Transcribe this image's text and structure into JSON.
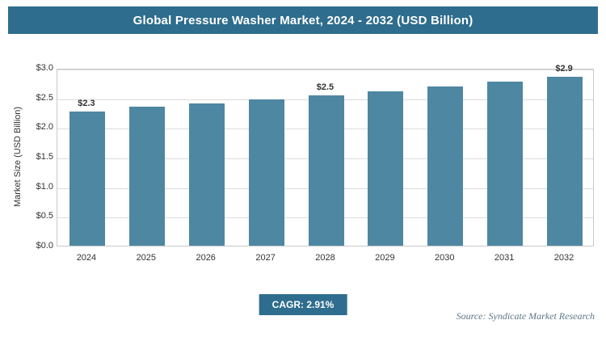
{
  "header": {
    "title": "Global Pressure Washer Market, 2024 - 2032 (USD Billion)"
  },
  "chart_data": {
    "type": "bar",
    "title": "Global Pressure Washer Market, 2024 - 2032 (USD Billion)",
    "categories": [
      "2024",
      "2025",
      "2026",
      "2027",
      "2028",
      "2029",
      "2030",
      "2031",
      "2032"
    ],
    "values": [
      2.27,
      2.34,
      2.4,
      2.47,
      2.54,
      2.61,
      2.69,
      2.77,
      2.85
    ],
    "bar_labels": [
      "$2.3",
      null,
      null,
      null,
      "$2.5",
      null,
      null,
      null,
      "$2.9"
    ],
    "xlabel": "",
    "ylabel": "Market Size (USD Billion)",
    "ylim": [
      0,
      3.0
    ],
    "ytick_labels": [
      "$0.0",
      "$0.5",
      "$1.0",
      "$1.5",
      "$2.0",
      "$2.5",
      "$3.0"
    ],
    "grid": true,
    "legend": false
  },
  "footer": {
    "cagr_label": "CAGR: 2.91%",
    "source": "Source: Syndicate Market Research"
  },
  "colors": {
    "header_bg": "#2e6d8d",
    "bar": "#4e87a2",
    "badge_bg": "#2e6d8d",
    "gridline": "#dcdcdc",
    "plot_border": "#c9c9c9",
    "axis_text": "#333333",
    "source_text": "#5f7585"
  }
}
